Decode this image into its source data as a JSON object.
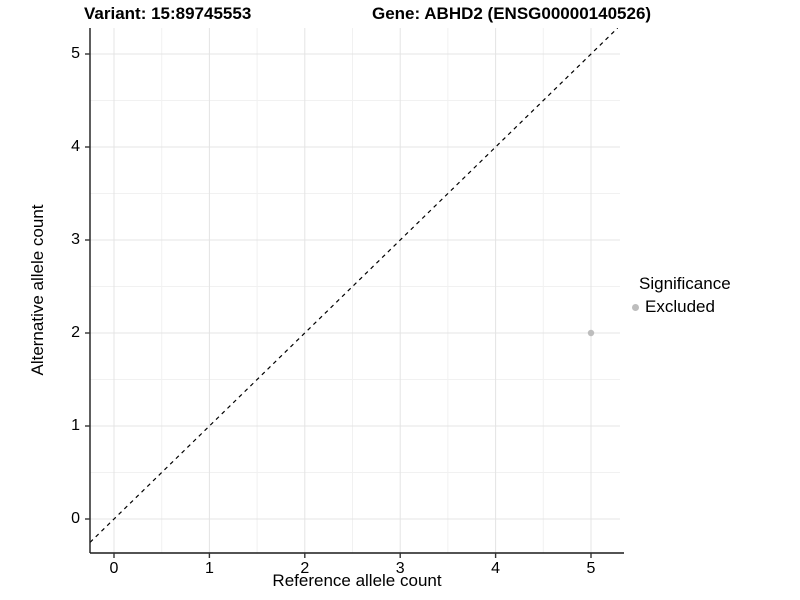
{
  "figure": {
    "title_left": "Variant: 15:89745553",
    "title_right": "Gene: ABHD2 (ENSG00000140526)"
  },
  "chart_data": {
    "type": "scatter",
    "title_left": "Variant: 15:89745553",
    "title_right": "Gene: ABHD2 (ENSG00000140526)",
    "xlabel": "Reference allele count",
    "ylabel": "Alternative allele count",
    "x_ticks": [
      0,
      1,
      2,
      3,
      4,
      5
    ],
    "y_ticks": [
      0,
      1,
      2,
      3,
      4,
      5
    ],
    "x_minor_gridlines": [
      0.5,
      1.5,
      2.5,
      3.5,
      4.5
    ],
    "y_minor_gridlines": [
      0.5,
      1.5,
      2.5,
      3.5,
      4.5
    ],
    "xlim": [
      -0.25,
      5.56
    ],
    "ylim": [
      -0.37,
      5.29
    ],
    "grid": true,
    "series": [
      {
        "name": "Excluded",
        "color": "#bdbdbd",
        "points": [
          {
            "x": 5,
            "y": 2
          }
        ]
      }
    ],
    "reference_line": {
      "slope": 1,
      "intercept": 0,
      "style": "dashed",
      "color": "#000000"
    },
    "legend": {
      "title": "Significance",
      "position": "right",
      "entries": [
        {
          "label": "Excluded",
          "color": "#bdbdbd"
        }
      ]
    },
    "colors": {
      "major_grid": "#e4e4e4",
      "minor_grid": "#f1f1f1",
      "axis_line": "#1a1a1a",
      "tick_mark": "#333333",
      "point": "#bdbdbd"
    }
  }
}
